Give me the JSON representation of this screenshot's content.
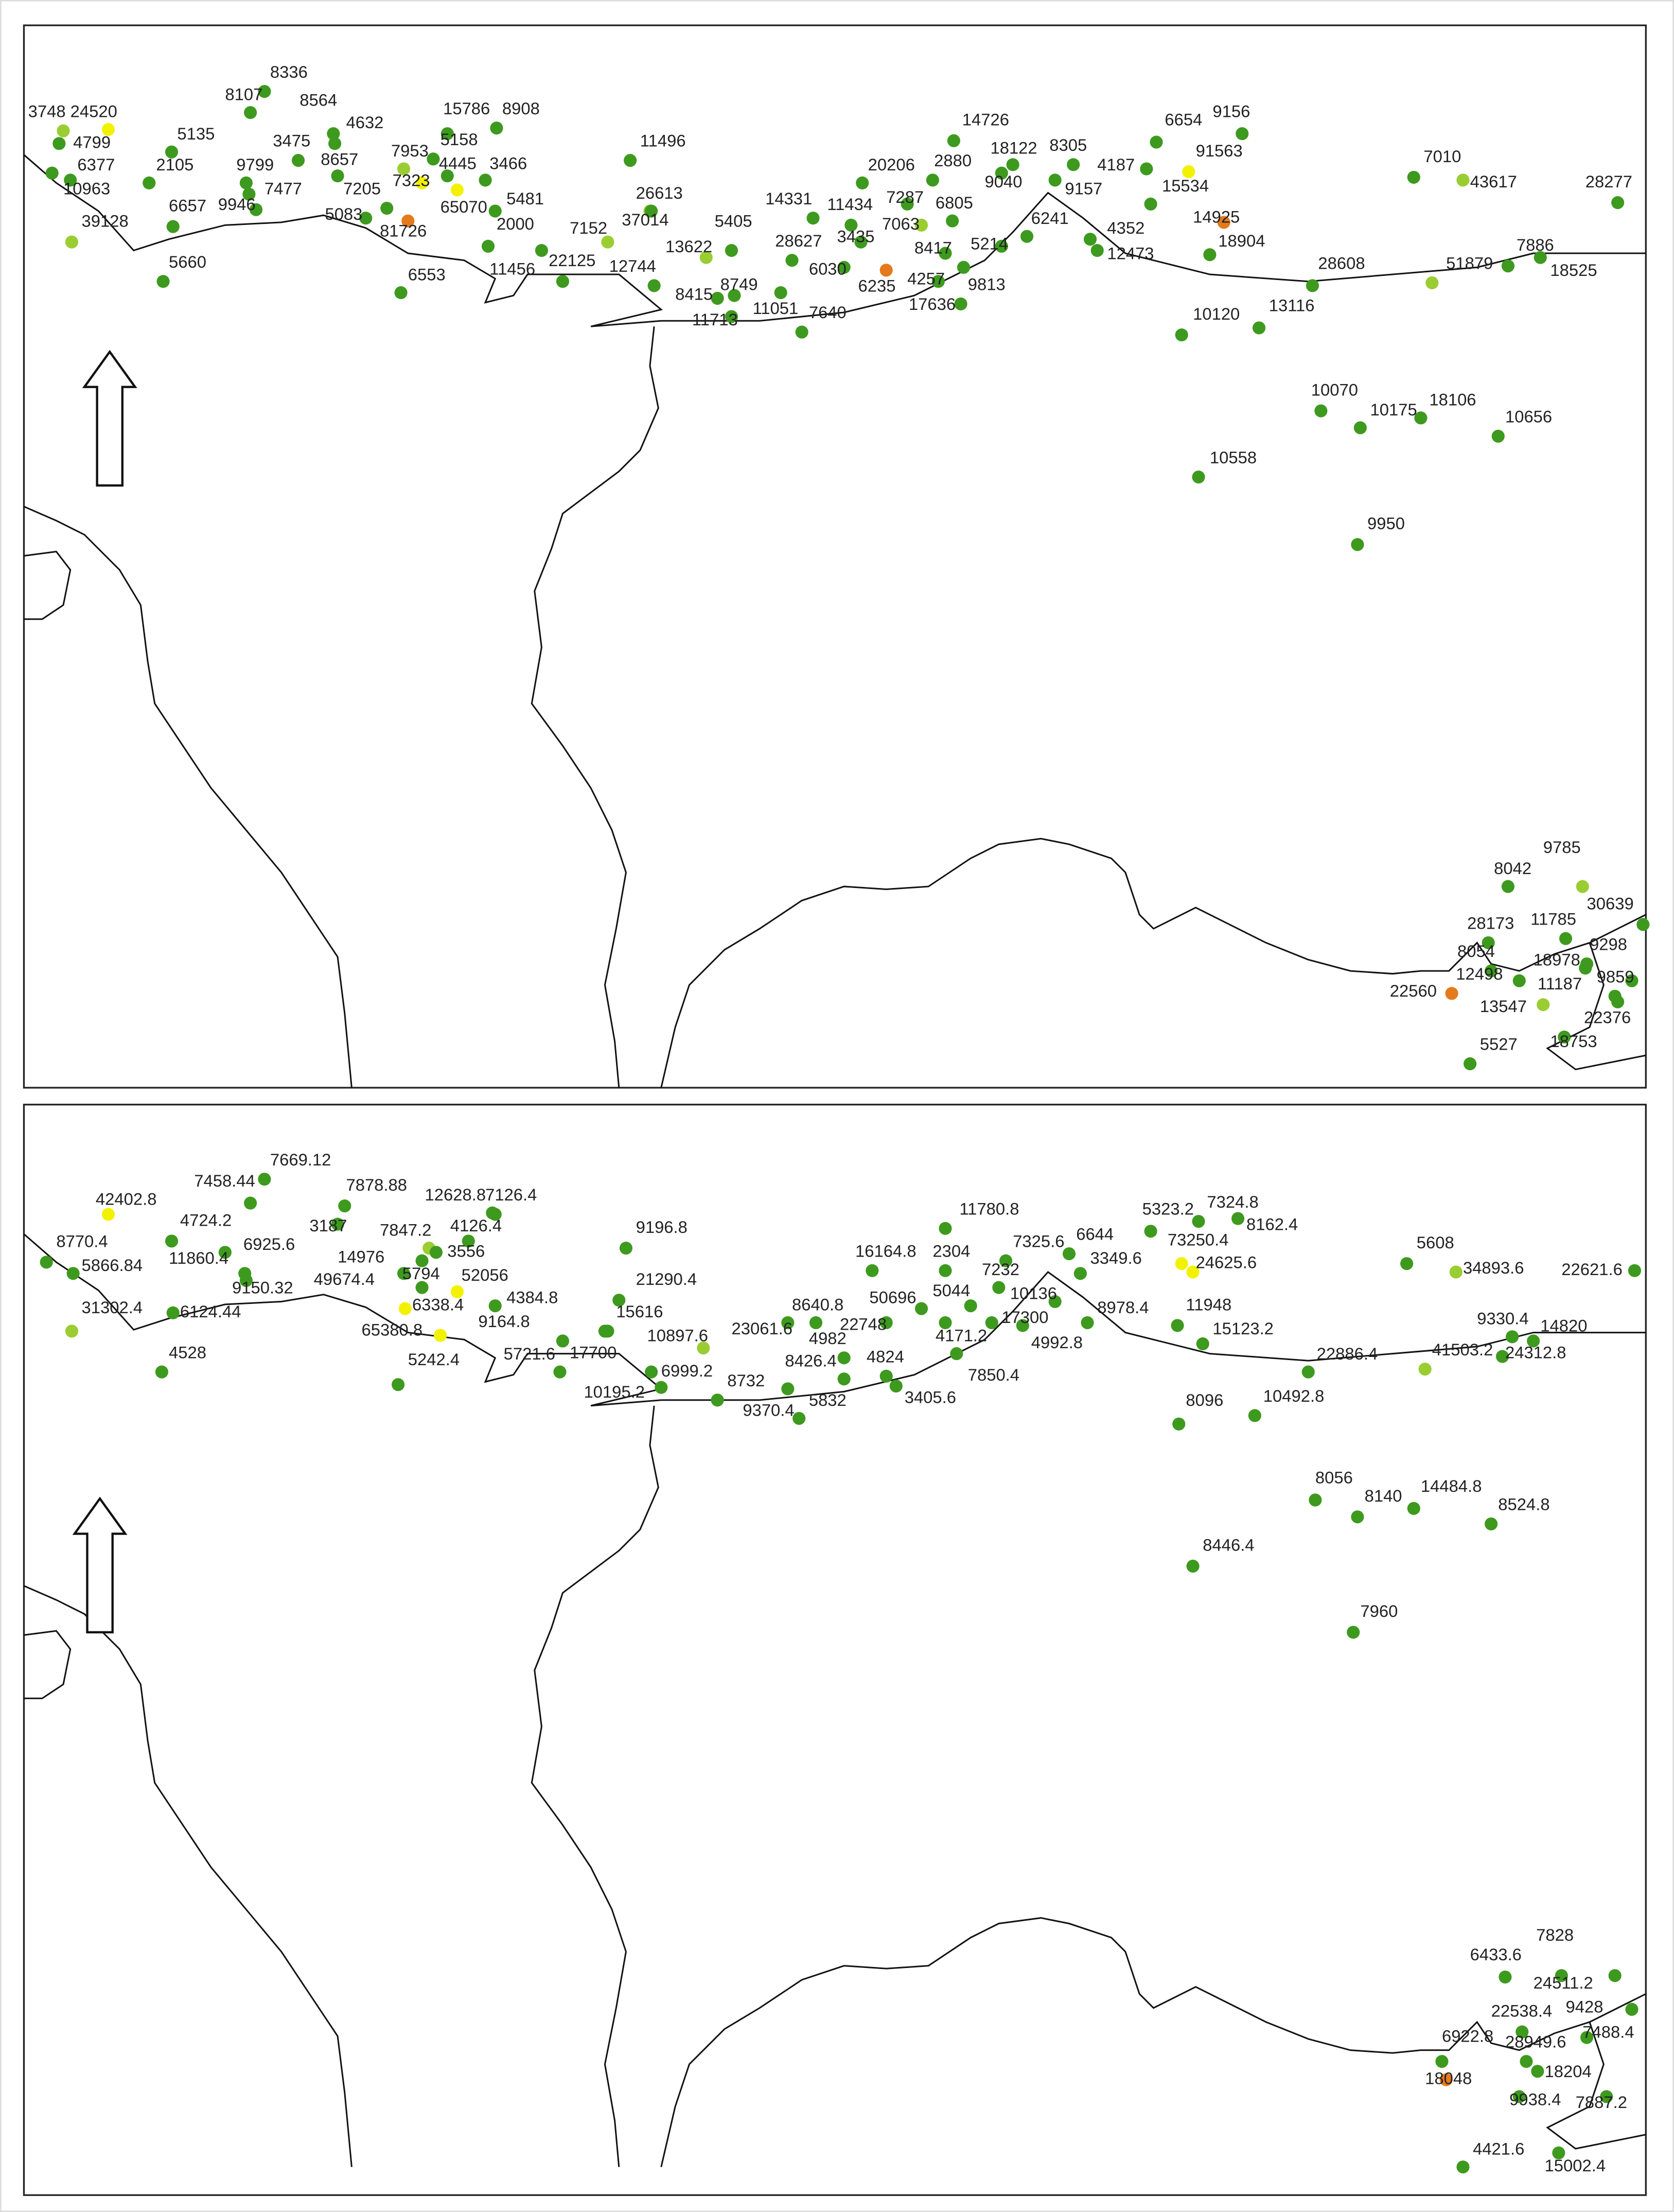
{
  "panels": [
    {
      "points": [
        {
          "value": 3748,
          "color": "#9acd32"
        },
        {
          "value": 24520,
          "color": "#f2f200"
        },
        {
          "value": 4799,
          "color": "#3d9a1e"
        },
        {
          "value": 6377,
          "color": "#3d9a1e"
        },
        {
          "value": 10963,
          "color": "#3d9a1e"
        },
        {
          "value": 39128,
          "color": "#9acd32"
        },
        {
          "value": 8336,
          "color": "#3d9a1e"
        },
        {
          "value": 8107,
          "color": "#3d9a1e"
        },
        {
          "value": 8564,
          "color": "#3d9a1e"
        },
        {
          "value": 4632,
          "color": "#3d9a1e"
        },
        {
          "value": 5135,
          "color": "#3d9a1e"
        },
        {
          "value": 3475,
          "color": "#3d9a1e"
        },
        {
          "value": 2105,
          "color": "#3d9a1e"
        },
        {
          "value": 9799,
          "color": "#3d9a1e"
        },
        {
          "value": 8657,
          "color": "#3d9a1e"
        },
        {
          "value": 7953,
          "color": "#9acd32"
        },
        {
          "value": 5158,
          "color": "#3d9a1e"
        },
        {
          "value": 15786,
          "color": "#3d9a1e"
        },
        {
          "value": 8908,
          "color": "#3d9a1e"
        },
        {
          "value": 7477,
          "color": "#3d9a1e"
        },
        {
          "value": 6657,
          "color": "#3d9a1e"
        },
        {
          "value": 9946,
          "color": "#3d9a1e"
        },
        {
          "value": 7205,
          "color": "#3d9a1e"
        },
        {
          "value": 7323,
          "color": "#f2f200"
        },
        {
          "value": 4445,
          "color": "#3d9a1e"
        },
        {
          "value": 3466,
          "color": "#3d9a1e"
        },
        {
          "value": 65070,
          "color": "#f2f200"
        },
        {
          "value": 5481,
          "color": "#3d9a1e"
        },
        {
          "value": 5083,
          "color": "#3d9a1e"
        },
        {
          "value": 2000,
          "color": "#3d9a1e"
        },
        {
          "value": 81726,
          "color": "#e57a1c"
        },
        {
          "value": 6553,
          "color": "#3d9a1e"
        },
        {
          "value": 5660,
          "color": "#3d9a1e"
        },
        {
          "value": 11456,
          "color": "#3d9a1e"
        },
        {
          "value": 22125,
          "color": "#3d9a1e"
        },
        {
          "value": 7152,
          "color": "#9acd32"
        },
        {
          "value": 37014,
          "color": "#9acd32"
        },
        {
          "value": 26613,
          "color": "#3d9a1e"
        },
        {
          "value": 11496,
          "color": "#3d9a1e"
        },
        {
          "value": 12744,
          "color": "#3d9a1e"
        },
        {
          "value": 13622,
          "color": "#9acd32"
        },
        {
          "value": 5405,
          "color": "#3d9a1e"
        },
        {
          "value": 8415,
          "color": "#3d9a1e"
        },
        {
          "value": 8749,
          "color": "#3d9a1e"
        },
        {
          "value": 11713,
          "color": "#3d9a1e"
        },
        {
          "value": 11051,
          "color": "#3d9a1e"
        },
        {
          "value": 7640,
          "color": "#3d9a1e"
        },
        {
          "value": 14331,
          "color": "#3d9a1e"
        },
        {
          "value": 28627,
          "color": "#3d9a1e"
        },
        {
          "value": 11434,
          "color": "#3d9a1e"
        },
        {
          "value": 3435,
          "color": "#3d9a1e"
        },
        {
          "value": 6030,
          "color": "#3d9a1e"
        },
        {
          "value": 6235,
          "color": "#e57a1c"
        },
        {
          "value": 7287,
          "color": "#3d9a1e"
        },
        {
          "value": 7063,
          "color": "#9acd32"
        },
        {
          "value": 6805,
          "color": "#3d9a1e"
        },
        {
          "value": 8417,
          "color": "#3d9a1e"
        },
        {
          "value": 4257,
          "color": "#3d9a1e"
        },
        {
          "value": 17636,
          "color": "#3d9a1e"
        },
        {
          "value": 9813,
          "color": "#3d9a1e"
        },
        {
          "value": 5214,
          "color": "#3d9a1e"
        },
        {
          "value": 20206,
          "color": "#3d9a1e"
        },
        {
          "value": 2880,
          "color": "#3d9a1e"
        },
        {
          "value": 14726,
          "color": "#3d9a1e"
        },
        {
          "value": 18122,
          "color": "#3d9a1e"
        },
        {
          "value": 9040,
          "color": "#3d9a1e"
        },
        {
          "value": 8305,
          "color": "#3d9a1e"
        },
        {
          "value": 4187,
          "color": "#3d9a1e"
        },
        {
          "value": 9157,
          "color": "#3d9a1e"
        },
        {
          "value": 6241,
          "color": "#3d9a1e"
        },
        {
          "value": 4352,
          "color": "#3d9a1e"
        },
        {
          "value": 12473,
          "color": "#3d9a1e"
        },
        {
          "value": 6654,
          "color": "#3d9a1e"
        },
        {
          "value": 9156,
          "color": "#3d9a1e"
        },
        {
          "value": 91563,
          "color": "#f2f200"
        },
        {
          "value": 15534,
          "color": "#3d9a1e"
        },
        {
          "value": 14925,
          "color": "#e57a1c"
        },
        {
          "value": 18904,
          "color": "#3d9a1e"
        },
        {
          "value": 10120,
          "color": "#3d9a1e"
        },
        {
          "value": 13116,
          "color": "#3d9a1e"
        },
        {
          "value": 28608,
          "color": "#3d9a1e"
        },
        {
          "value": 7010,
          "color": "#3d9a1e"
        },
        {
          "value": 43617,
          "color": "#9acd32"
        },
        {
          "value": 28277,
          "color": "#3d9a1e"
        },
        {
          "value": 51879,
          "color": "#9acd32"
        },
        {
          "value": 7886,
          "color": "#3d9a1e"
        },
        {
          "value": 18525,
          "color": "#3d9a1e"
        },
        {
          "value": 10070,
          "color": "#3d9a1e"
        },
        {
          "value": 10175,
          "color": "#3d9a1e"
        },
        {
          "value": 18106,
          "color": "#3d9a1e"
        },
        {
          "value": 10656,
          "color": "#3d9a1e"
        },
        {
          "value": 10558,
          "color": "#3d9a1e"
        },
        {
          "value": 9950,
          "color": "#3d9a1e"
        },
        {
          "value": 8042,
          "color": "#3d9a1e"
        },
        {
          "value": 9785,
          "color": "#9acd32"
        },
        {
          "value": 30639,
          "color": "#3d9a1e"
        },
        {
          "value": 28173,
          "color": "#3d9a1e"
        },
        {
          "value": 11785,
          "color": "#3d9a1e"
        },
        {
          "value": 9298,
          "color": "#3d9a1e"
        },
        {
          "value": 8054,
          "color": "#3d9a1e"
        },
        {
          "value": 18978,
          "color": "#3d9a1e"
        },
        {
          "value": 12498,
          "color": "#3d9a1e"
        },
        {
          "value": 11187,
          "color": "#3d9a1e"
        },
        {
          "value": 9859,
          "color": "#3d9a1e"
        },
        {
          "value": 22560,
          "color": "#e57a1c"
        },
        {
          "value": 13547,
          "color": "#9acd32"
        },
        {
          "value": 22376,
          "color": "#3d9a1e"
        },
        {
          "value": 18753,
          "color": "#3d9a1e"
        },
        {
          "value": 5527,
          "color": "#3d9a1e"
        }
      ]
    },
    {
      "points": [
        {
          "value": 7669.12,
          "color": "#3d9a1e"
        },
        {
          "value": 7458.44,
          "color": "#3d9a1e"
        },
        {
          "value": 42402.8,
          "color": "#f2f200"
        },
        {
          "value": 4724.2,
          "color": "#3d9a1e"
        },
        {
          "value": 7878.88,
          "color": "#3d9a1e"
        },
        {
          "value": 12628.8,
          "color": "#3d9a1e"
        },
        {
          "value": 7126.4,
          "color": "#3d9a1e"
        },
        {
          "value": 7847.2,
          "color": "#9acd32"
        },
        {
          "value": 4126.4,
          "color": "#3d9a1e"
        },
        {
          "value": 3187,
          "color": "#3d9a1e"
        },
        {
          "value": 6925.6,
          "color": "#3d9a1e"
        },
        {
          "value": 8770.4,
          "color": "#3d9a1e"
        },
        {
          "value": 11860.4,
          "color": "#3d9a1e"
        },
        {
          "value": 14976,
          "color": "#3d9a1e"
        },
        {
          "value": 3556,
          "color": "#3d9a1e"
        },
        {
          "value": 5866.84,
          "color": "#3d9a1e"
        },
        {
          "value": 9150.32,
          "color": "#3d9a1e"
        },
        {
          "value": 49674.4,
          "color": "#3d9a1e"
        },
        {
          "value": 5794,
          "color": "#3d9a1e"
        },
        {
          "value": 52056,
          "color": "#f2f200"
        },
        {
          "value": 6338.4,
          "color": "#f2f200"
        },
        {
          "value": 4384.8,
          "color": "#3d9a1e"
        },
        {
          "value": 31302.4,
          "color": "#9acd32"
        },
        {
          "value": 6124.44,
          "color": "#3d9a1e"
        },
        {
          "value": 9164.8,
          "color": "#3d9a1e"
        },
        {
          "value": 65380.8,
          "color": "#f2f200"
        },
        {
          "value": 4528,
          "color": "#3d9a1e"
        },
        {
          "value": 5242.4,
          "color": "#3d9a1e"
        },
        {
          "value": 5721.6,
          "color": "#3d9a1e"
        },
        {
          "value": 17700,
          "color": "#3d9a1e"
        },
        {
          "value": 9196.8,
          "color": "#3d9a1e"
        },
        {
          "value": 21290.4,
          "color": "#3d9a1e"
        },
        {
          "value": 15616,
          "color": "#3d9a1e"
        },
        {
          "value": 10897.6,
          "color": "#9acd32"
        },
        {
          "value": 23061.6,
          "color": "#3d9a1e"
        },
        {
          "value": 6999.2,
          "color": "#3d9a1e"
        },
        {
          "value": 10195.2,
          "color": "#3d9a1e"
        },
        {
          "value": 8732,
          "color": "#3d9a1e"
        },
        {
          "value": 9370.4,
          "color": "#3d9a1e"
        },
        {
          "value": 5832,
          "color": "#3d9a1e"
        },
        {
          "value": 8426.4,
          "color": "#3d9a1e"
        },
        {
          "value": 4982,
          "color": "#3d9a1e"
        },
        {
          "value": 4824,
          "color": "#3d9a1e"
        },
        {
          "value": 3405.6,
          "color": "#3d9a1e"
        },
        {
          "value": 8640.8,
          "color": "#3d9a1e"
        },
        {
          "value": 22748,
          "color": "#3d9a1e"
        },
        {
          "value": 50696,
          "color": "#3d9a1e"
        },
        {
          "value": 5044,
          "color": "#3d9a1e"
        },
        {
          "value": 4171.2,
          "color": "#3d9a1e"
        },
        {
          "value": 7850.4,
          "color": "#3d9a1e"
        },
        {
          "value": 16164.8,
          "color": "#3d9a1e"
        },
        {
          "value": 2304,
          "color": "#3d9a1e"
        },
        {
          "value": 11780.8,
          "color": "#3d9a1e"
        },
        {
          "value": 7325.6,
          "color": "#3d9a1e"
        },
        {
          "value": 7232,
          "color": "#3d9a1e"
        },
        {
          "value": 6644,
          "color": "#3d9a1e"
        },
        {
          "value": 10136,
          "color": "#3d9a1e"
        },
        {
          "value": 17300,
          "color": "#3d9a1e"
        },
        {
          "value": 3349.6,
          "color": "#3d9a1e"
        },
        {
          "value": 4992.8,
          "color": "#3d9a1e"
        },
        {
          "value": 8978.4,
          "color": "#3d9a1e"
        },
        {
          "value": 5323.2,
          "color": "#3d9a1e"
        },
        {
          "value": 7324.8,
          "color": "#3d9a1e"
        },
        {
          "value": 8162.4,
          "color": "#3d9a1e"
        },
        {
          "value": 73250.4,
          "color": "#f2f200"
        },
        {
          "value": 24625.6,
          "color": "#f2f200"
        },
        {
          "value": 11948,
          "color": "#3d9a1e"
        },
        {
          "value": 15123.2,
          "color": "#3d9a1e"
        },
        {
          "value": 22886.4,
          "color": "#3d9a1e"
        },
        {
          "value": 8096,
          "color": "#3d9a1e"
        },
        {
          "value": 10492.8,
          "color": "#3d9a1e"
        },
        {
          "value": 5608,
          "color": "#3d9a1e"
        },
        {
          "value": 34893.6,
          "color": "#9acd32"
        },
        {
          "value": 22621.6,
          "color": "#3d9a1e"
        },
        {
          "value": 9330.4,
          "color": "#3d9a1e"
        },
        {
          "value": 14820,
          "color": "#3d9a1e"
        },
        {
          "value": 41503.2,
          "color": "#9acd32"
        },
        {
          "value": 24312.8,
          "color": "#3d9a1e"
        },
        {
          "value": 8056,
          "color": "#3d9a1e"
        },
        {
          "value": 8140,
          "color": "#3d9a1e"
        },
        {
          "value": 14484.8,
          "color": "#3d9a1e"
        },
        {
          "value": 8524.8,
          "color": "#3d9a1e"
        },
        {
          "value": 8446.4,
          "color": "#3d9a1e"
        },
        {
          "value": 7960,
          "color": "#3d9a1e"
        },
        {
          "value": 7828,
          "color": "#3d9a1e"
        },
        {
          "value": 6433.6,
          "color": "#3d9a1e"
        },
        {
          "value": 24511.2,
          "color": "#3d9a1e"
        },
        {
          "value": 22538.4,
          "color": "#3d9a1e"
        },
        {
          "value": 9428,
          "color": "#3d9a1e"
        },
        {
          "value": 6922.8,
          "color": "#3d9a1e"
        },
        {
          "value": 28949.6,
          "color": "#3d9a1e"
        },
        {
          "value": 7488.4,
          "color": "#3d9a1e"
        },
        {
          "value": 18204,
          "color": "#3d9a1e"
        },
        {
          "value": 18048,
          "color": "#e57a1c"
        },
        {
          "value": 9938.4,
          "color": "#3d9a1e"
        },
        {
          "value": 7887.2,
          "color": "#3d9a1e"
        },
        {
          "value": 15002.4,
          "color": "#3d9a1e"
        },
        {
          "value": 4421.6,
          "color": "#3d9a1e"
        }
      ]
    }
  ]
}
